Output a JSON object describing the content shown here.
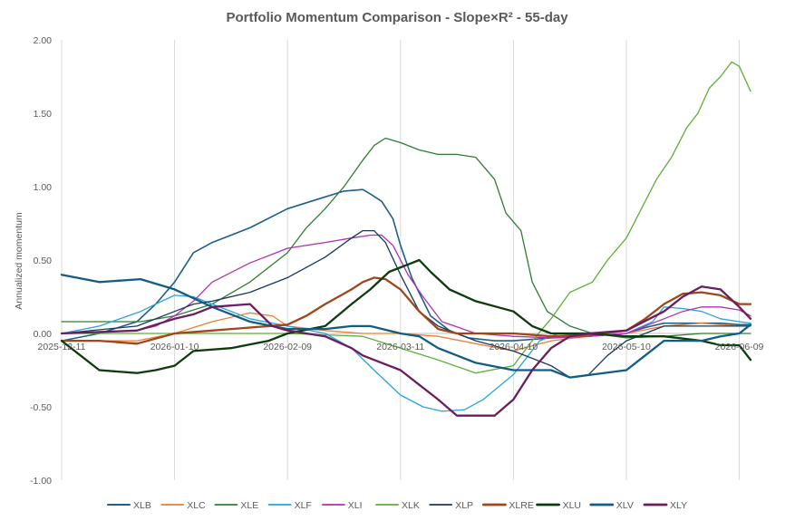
{
  "chart_data": {
    "type": "line",
    "title": "Portfolio Momentum Comparison  -  Slope×R²  -  55-day",
    "xlabel": "",
    "ylabel": "Annualized momentum",
    "ylim": [
      -1.0,
      2.0
    ],
    "y_ticks": [
      "-1.00",
      "-0.50",
      "0.00",
      "0.50",
      "1.00",
      "1.50",
      "2.00"
    ],
    "x_ticks": [
      "2025-12-11",
      "2026-01-10",
      "2026-02-09",
      "2026-03-11",
      "2026-04-10",
      "2026-05-10",
      "2026-06-09"
    ],
    "x_range": [
      "2025-12-11",
      "2026-06-12"
    ],
    "grid": "vertical",
    "legend_position": "bottom",
    "series": [
      {
        "name": "XLB",
        "color": "#1F5F8B",
        "width": 1.6,
        "x": [
          "2025-12-11",
          "2025-12-21",
          "2025-12-31",
          "2026-01-05",
          "2026-01-10",
          "2026-01-15",
          "2026-01-20",
          "2026-01-30",
          "2026-02-09",
          "2026-02-19",
          "2026-02-24",
          "2026-03-01",
          "2026-03-03",
          "2026-03-06",
          "2026-03-09",
          "2026-03-11",
          "2026-03-14",
          "2026-03-19",
          "2026-03-24",
          "2026-03-29",
          "2026-04-05",
          "2026-04-10",
          "2026-04-20",
          "2026-04-30",
          "2026-05-10",
          "2026-05-15",
          "2026-05-20",
          "2026-05-25",
          "2026-05-30",
          "2026-06-04",
          "2026-06-09",
          "2026-06-12"
        ],
        "y": [
          -0.05,
          0.0,
          0.08,
          0.2,
          0.35,
          0.55,
          0.62,
          0.72,
          0.85,
          0.93,
          0.97,
          0.98,
          0.95,
          0.9,
          0.78,
          0.6,
          0.38,
          0.12,
          0.02,
          -0.03,
          -0.05,
          -0.05,
          -0.03,
          -0.02,
          0.0,
          0.04,
          0.07,
          0.07,
          0.07,
          0.07,
          0.06,
          0.06
        ]
      },
      {
        "name": "XLC",
        "color": "#ED7D31",
        "width": 1.3,
        "x": [
          "2025-12-11",
          "2025-12-31",
          "2026-01-10",
          "2026-01-20",
          "2026-01-30",
          "2026-02-05",
          "2026-02-09",
          "2026-02-19",
          "2026-03-01",
          "2026-03-11",
          "2026-03-21",
          "2026-03-31",
          "2026-04-10",
          "2026-04-20",
          "2026-04-30",
          "2026-05-10",
          "2026-05-20",
          "2026-05-30",
          "2026-06-09",
          "2026-06-12"
        ],
        "y": [
          -0.05,
          -0.05,
          0.0,
          0.08,
          0.14,
          0.12,
          0.05,
          0.02,
          0.0,
          0.0,
          -0.02,
          -0.07,
          -0.12,
          -0.05,
          -0.02,
          0.0,
          0.05,
          0.07,
          0.05,
          0.05
        ]
      },
      {
        "name": "XLE",
        "color": "#2E7D32",
        "width": 1.3,
        "x": [
          "2025-12-11",
          "2025-12-21",
          "2026-01-01",
          "2026-01-10",
          "2026-01-20",
          "2026-01-30",
          "2026-02-09",
          "2026-02-14",
          "2026-02-19",
          "2026-02-24",
          "2026-03-01",
          "2026-03-04",
          "2026-03-07",
          "2026-03-11",
          "2026-03-16",
          "2026-03-21",
          "2026-03-26",
          "2026-03-31",
          "2026-04-05",
          "2026-04-08",
          "2026-04-12",
          "2026-04-15",
          "2026-04-19",
          "2026-04-25",
          "2026-05-01",
          "2026-05-10",
          "2026-05-20",
          "2026-05-30",
          "2026-06-09",
          "2026-06-12"
        ],
        "y": [
          0.08,
          0.08,
          0.08,
          0.12,
          0.2,
          0.35,
          0.55,
          0.72,
          0.85,
          1.0,
          1.18,
          1.28,
          1.33,
          1.3,
          1.25,
          1.22,
          1.22,
          1.2,
          1.05,
          0.82,
          0.7,
          0.35,
          0.15,
          0.05,
          0.0,
          -0.03,
          -0.02,
          0.0,
          0.0,
          0.0
        ]
      },
      {
        "name": "XLF",
        "color": "#27A4DD",
        "width": 1.3,
        "x": [
          "2025-12-11",
          "2025-12-21",
          "2026-01-01",
          "2026-01-05",
          "2026-01-10",
          "2026-01-15",
          "2026-01-20",
          "2026-01-30",
          "2026-02-09",
          "2026-02-19",
          "2026-02-26",
          "2026-03-04",
          "2026-03-11",
          "2026-03-17",
          "2026-03-22",
          "2026-03-28",
          "2026-04-02",
          "2026-04-10",
          "2026-04-17",
          "2026-04-22",
          "2026-04-30",
          "2026-05-10",
          "2026-05-17",
          "2026-05-20",
          "2026-05-25",
          "2026-05-30",
          "2026-06-04",
          "2026-06-09",
          "2026-06-12"
        ],
        "y": [
          0.0,
          0.05,
          0.15,
          0.2,
          0.26,
          0.25,
          0.2,
          0.1,
          0.05,
          0.0,
          -0.1,
          -0.25,
          -0.42,
          -0.5,
          -0.53,
          -0.52,
          -0.45,
          -0.28,
          -0.05,
          0.0,
          -0.02,
          0.0,
          0.08,
          0.18,
          0.17,
          0.15,
          0.1,
          0.08,
          0.07
        ]
      },
      {
        "name": "XLI",
        "color": "#B030B0",
        "width": 1.3,
        "x": [
          "2025-12-11",
          "2025-12-31",
          "2026-01-05",
          "2026-01-10",
          "2026-01-15",
          "2026-01-20",
          "2026-01-30",
          "2026-02-09",
          "2026-02-19",
          "2026-02-26",
          "2026-03-03",
          "2026-03-06",
          "2026-03-09",
          "2026-03-13",
          "2026-03-17",
          "2026-03-22",
          "2026-03-31",
          "2026-04-10",
          "2026-04-20",
          "2026-04-30",
          "2026-05-10",
          "2026-05-20",
          "2026-05-25",
          "2026-05-30",
          "2026-06-04",
          "2026-06-09",
          "2026-06-12"
        ],
        "y": [
          0.0,
          0.02,
          0.05,
          0.12,
          0.22,
          0.35,
          0.48,
          0.58,
          0.62,
          0.65,
          0.67,
          0.67,
          0.6,
          0.4,
          0.25,
          0.08,
          0.0,
          -0.02,
          -0.03,
          -0.02,
          0.0,
          0.1,
          0.15,
          0.18,
          0.18,
          0.16,
          0.12
        ]
      },
      {
        "name": "XLK",
        "color": "#5FAE3A",
        "width": 1.3,
        "x": [
          "2025-12-11",
          "2026-01-01",
          "2026-01-10",
          "2026-02-09",
          "2026-03-01",
          "2026-03-11",
          "2026-03-21",
          "2026-03-31",
          "2026-04-10",
          "2026-04-15",
          "2026-04-20",
          "2026-04-25",
          "2026-05-01",
          "2026-05-05",
          "2026-05-10",
          "2026-05-14",
          "2026-05-18",
          "2026-05-22",
          "2026-05-26",
          "2026-05-29",
          "2026-06-01",
          "2026-06-04",
          "2026-06-07",
          "2026-06-09",
          "2026-06-12"
        ],
        "y": [
          0.0,
          0.0,
          0.0,
          0.0,
          -0.02,
          -0.1,
          -0.18,
          -0.27,
          -0.22,
          -0.05,
          0.1,
          0.28,
          0.35,
          0.5,
          0.65,
          0.85,
          1.05,
          1.2,
          1.4,
          1.5,
          1.67,
          1.75,
          1.85,
          1.82,
          1.65
        ]
      },
      {
        "name": "XLP",
        "color": "#17375E",
        "width": 1.3,
        "x": [
          "2025-12-11",
          "2025-12-31",
          "2026-01-10",
          "2026-01-15",
          "2026-01-20",
          "2026-01-30",
          "2026-02-09",
          "2026-02-19",
          "2026-02-26",
          "2026-03-01",
          "2026-03-04",
          "2026-03-07",
          "2026-03-11",
          "2026-03-16",
          "2026-03-21",
          "2026-03-31",
          "2026-04-10",
          "2026-04-20",
          "2026-04-25",
          "2026-04-30",
          "2026-05-05",
          "2026-05-10",
          "2026-05-20",
          "2026-05-30",
          "2026-06-09",
          "2026-06-12"
        ],
        "y": [
          0.0,
          0.05,
          0.15,
          0.2,
          0.22,
          0.28,
          0.38,
          0.52,
          0.65,
          0.7,
          0.7,
          0.62,
          0.4,
          0.15,
          0.05,
          -0.05,
          -0.12,
          -0.22,
          -0.3,
          -0.28,
          -0.15,
          -0.05,
          0.05,
          0.05,
          0.05,
          0.05
        ]
      },
      {
        "name": "XLRE",
        "color": "#A0461A",
        "width": 2.3,
        "x": [
          "2025-12-11",
          "2025-12-21",
          "2025-12-31",
          "2026-01-10",
          "2026-01-20",
          "2026-01-30",
          "2026-02-09",
          "2026-02-14",
          "2026-02-19",
          "2026-02-26",
          "2026-03-01",
          "2026-03-04",
          "2026-03-07",
          "2026-03-11",
          "2026-03-16",
          "2026-03-21",
          "2026-03-26",
          "2026-03-31",
          "2026-04-10",
          "2026-04-20",
          "2026-04-30",
          "2026-05-10",
          "2026-05-15",
          "2026-05-20",
          "2026-05-25",
          "2026-05-30",
          "2026-06-04",
          "2026-06-09",
          "2026-06-12"
        ],
        "y": [
          -0.05,
          -0.05,
          -0.07,
          0.0,
          0.02,
          0.04,
          0.06,
          0.12,
          0.2,
          0.3,
          0.35,
          0.38,
          0.37,
          0.3,
          0.15,
          0.03,
          0.0,
          0.0,
          0.0,
          -0.02,
          -0.01,
          0.02,
          0.1,
          0.2,
          0.27,
          0.28,
          0.26,
          0.2,
          0.2
        ]
      },
      {
        "name": "XLU",
        "color": "#0E3B0E",
        "width": 2.3,
        "x": [
          "2025-12-11",
          "2025-12-16",
          "2025-12-21",
          "2025-12-31",
          "2026-01-05",
          "2026-01-10",
          "2026-01-15",
          "2026-01-25",
          "2026-02-04",
          "2026-02-09",
          "2026-02-19",
          "2026-02-26",
          "2026-03-03",
          "2026-03-08",
          "2026-03-13",
          "2026-03-16",
          "2026-03-19",
          "2026-03-24",
          "2026-03-31",
          "2026-04-10",
          "2026-04-15",
          "2026-04-20",
          "2026-04-30",
          "2026-05-10",
          "2026-05-20",
          "2026-05-30",
          "2026-06-04",
          "2026-06-09",
          "2026-06-12"
        ],
        "y": [
          -0.05,
          -0.15,
          -0.25,
          -0.27,
          -0.25,
          -0.22,
          -0.12,
          -0.1,
          -0.05,
          0.0,
          0.05,
          0.2,
          0.3,
          0.42,
          0.47,
          0.5,
          0.42,
          0.3,
          0.22,
          0.15,
          0.05,
          0.0,
          0.0,
          -0.02,
          -0.02,
          -0.05,
          -0.08,
          -0.08,
          -0.18
        ]
      },
      {
        "name": "XLV",
        "color": "#135D84",
        "width": 2.3,
        "x": [
          "2025-12-11",
          "2025-12-21",
          "2026-01-01",
          "2026-01-10",
          "2026-01-20",
          "2026-01-30",
          "2026-02-09",
          "2026-02-19",
          "2026-02-26",
          "2026-03-03",
          "2026-03-11",
          "2026-03-16",
          "2026-03-21",
          "2026-03-31",
          "2026-04-10",
          "2026-04-20",
          "2026-04-25",
          "2026-05-01",
          "2026-05-10",
          "2026-05-15",
          "2026-05-20",
          "2026-05-30",
          "2026-06-04",
          "2026-06-09",
          "2026-06-12"
        ],
        "y": [
          0.4,
          0.35,
          0.37,
          0.3,
          0.18,
          0.08,
          0.03,
          0.03,
          0.05,
          0.05,
          0.0,
          -0.02,
          -0.1,
          -0.2,
          -0.25,
          -0.25,
          -0.3,
          -0.28,
          -0.25,
          -0.15,
          -0.05,
          -0.05,
          -0.02,
          0.0,
          0.06
        ]
      },
      {
        "name": "XLY",
        "color": "#6B1E5E",
        "width": 2.3,
        "x": [
          "2025-12-11",
          "2025-12-31",
          "2026-01-10",
          "2026-01-15",
          "2026-01-20",
          "2026-01-30",
          "2026-02-05",
          "2026-02-09",
          "2026-02-19",
          "2026-02-26",
          "2026-03-01",
          "2026-03-06",
          "2026-03-11",
          "2026-03-16",
          "2026-03-21",
          "2026-03-26",
          "2026-03-31",
          "2026-04-05",
          "2026-04-10",
          "2026-04-15",
          "2026-04-20",
          "2026-04-25",
          "2026-04-30",
          "2026-05-10",
          "2026-05-20",
          "2026-05-25",
          "2026-05-30",
          "2026-06-04",
          "2026-06-09",
          "2026-06-12"
        ],
        "y": [
          0.0,
          0.02,
          0.1,
          0.13,
          0.18,
          0.2,
          0.05,
          0.02,
          -0.02,
          -0.1,
          -0.15,
          -0.2,
          -0.25,
          -0.35,
          -0.45,
          -0.56,
          -0.56,
          -0.56,
          -0.45,
          -0.25,
          -0.1,
          -0.02,
          0.0,
          0.02,
          0.15,
          0.25,
          0.32,
          0.3,
          0.18,
          0.1
        ]
      }
    ]
  }
}
